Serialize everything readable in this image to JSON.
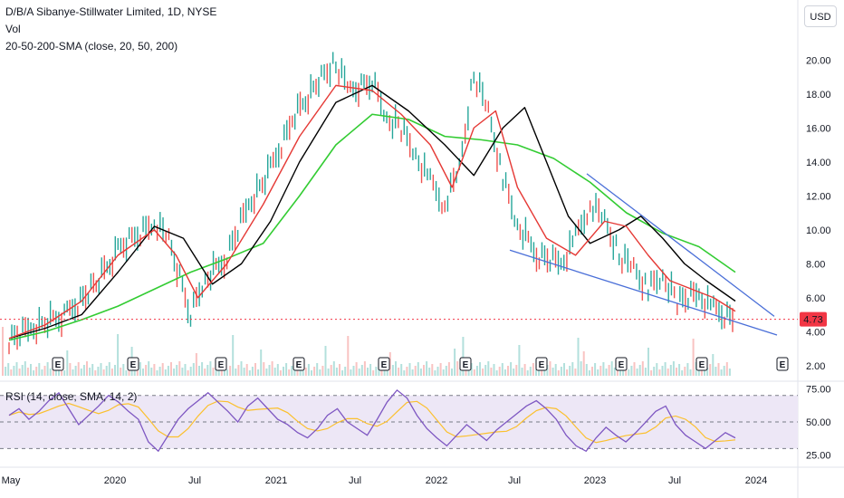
{
  "header": {
    "title": "D/B/A Sibanye-Stillwater Limited, 1D, NYSE",
    "vol_label": "Vol",
    "sma_label": "20-50-200-SMA (close, 20, 50, 200)",
    "currency": "USD"
  },
  "rsi_panel": {
    "label": "RSI (14, close, SMA, 14, 2)",
    "yticks": [
      "75.00",
      "50.00",
      "25.00"
    ],
    "upper": 70,
    "lower": 30,
    "middle": 50
  },
  "colors": {
    "up": "#26a69a",
    "down": "#ef5350",
    "sma20": "#e53935",
    "sma50": "#000000",
    "sma200": "#33cc33",
    "trendline": "#4a6fd8",
    "rsi": "#7e57c2",
    "rsi_sma": "#fbc02d",
    "rsi_band": "#ede7f6",
    "price_tag": "#f23645"
  },
  "chart_data": [
    {
      "type": "line",
      "title": "D/B/A Sibanye-Stillwater Limited, 1D, NYSE",
      "yticks": [
        "20.00",
        "18.00",
        "16.00",
        "14.00",
        "12.00",
        "10.00",
        "8.00",
        "6.00",
        "4.00",
        "2.00"
      ],
      "ylim": [
        1.4,
        21.4
      ],
      "xticks": [
        "May",
        "2020",
        "Jul",
        "2021",
        "Jul",
        "2022",
        "Jul",
        "2023",
        "Jul",
        "2024"
      ],
      "last_price": "4.73",
      "series": [
        {
          "name": "close",
          "x": [
            0,
            0.03,
            0.08,
            0.12,
            0.15,
            0.2,
            0.22,
            0.25,
            0.27,
            0.3,
            0.33,
            0.36,
            0.39,
            0.43,
            0.45,
            0.47,
            0.5,
            0.52,
            0.54,
            0.56,
            0.58,
            0.6,
            0.62,
            0.64,
            0.66,
            0.68,
            0.7,
            0.73,
            0.76,
            0.78,
            0.8,
            0.82,
            0.84,
            0.86,
            0.88,
            0.9,
            0.92,
            0.95,
            0.97,
            1
          ],
          "values": [
            3.5,
            4.2,
            5.0,
            6.8,
            8.8,
            10.5,
            9.5,
            5.0,
            7.0,
            8.5,
            11.5,
            13.5,
            16.5,
            19.0,
            19.8,
            18.2,
            18.8,
            16.5,
            16.0,
            14.5,
            12.8,
            11.5,
            13.5,
            19.2,
            17.0,
            13.0,
            10.2,
            8.5,
            8.0,
            9.5,
            11.5,
            10.5,
            8.5,
            7.8,
            6.5,
            7.2,
            5.8,
            6.2,
            5.3,
            4.73
          ]
        },
        {
          "name": "SMA 20",
          "x": [
            0,
            0.05,
            0.1,
            0.15,
            0.2,
            0.23,
            0.26,
            0.3,
            0.35,
            0.4,
            0.45,
            0.5,
            0.54,
            0.58,
            0.61,
            0.64,
            0.67,
            0.7,
            0.74,
            0.78,
            0.82,
            0.85,
            0.88,
            0.91,
            0.94,
            0.97,
            1
          ],
          "values": [
            3.6,
            4.4,
            5.8,
            8.5,
            10.0,
            8.5,
            6.0,
            8.0,
            11.5,
            15.5,
            18.5,
            18.2,
            16.8,
            15.0,
            12.5,
            16.0,
            17.0,
            12.5,
            9.5,
            8.5,
            10.5,
            10.2,
            8.5,
            7.0,
            6.5,
            6.0,
            5.2
          ]
        },
        {
          "name": "SMA 50",
          "x": [
            0,
            0.05,
            0.1,
            0.15,
            0.2,
            0.24,
            0.28,
            0.32,
            0.36,
            0.4,
            0.45,
            0.5,
            0.55,
            0.6,
            0.64,
            0.68,
            0.71,
            0.74,
            0.77,
            0.8,
            0.84,
            0.87,
            0.9,
            0.93,
            0.96,
            1
          ],
          "values": [
            3.6,
            4.2,
            5.0,
            7.5,
            10.2,
            9.5,
            6.8,
            8.0,
            10.5,
            14.0,
            17.5,
            18.5,
            17.0,
            15.0,
            13.2,
            16.0,
            17.2,
            14.0,
            10.8,
            9.2,
            10.0,
            10.8,
            9.5,
            8.0,
            7.0,
            5.8
          ]
        },
        {
          "name": "SMA 200",
          "x": [
            0,
            0.05,
            0.1,
            0.15,
            0.2,
            0.25,
            0.3,
            0.35,
            0.4,
            0.45,
            0.5,
            0.55,
            0.6,
            0.65,
            0.7,
            0.75,
            0.8,
            0.85,
            0.9,
            0.95,
            1
          ],
          "values": [
            3.5,
            4.0,
            4.7,
            5.5,
            6.5,
            7.5,
            8.3,
            9.2,
            12.0,
            15.0,
            16.8,
            16.5,
            15.5,
            15.3,
            15.0,
            14.2,
            12.8,
            11.0,
            9.8,
            9.0,
            7.5
          ]
        }
      ]
    },
    {
      "type": "line",
      "title": "RSI (14, close, SMA, 14, 2)",
      "yticks": [
        "75.00",
        "50.00",
        "25.00"
      ],
      "ylim": [
        20,
        78
      ],
      "series": [
        {
          "name": "RSI",
          "values": [
            55,
            60,
            52,
            58,
            66,
            72,
            60,
            48,
            55,
            62,
            70,
            65,
            58,
            52,
            35,
            28,
            40,
            52,
            60,
            66,
            72,
            65,
            58,
            50,
            62,
            68,
            60,
            52,
            48,
            42,
            38,
            45,
            55,
            60,
            50,
            45,
            40,
            52,
            65,
            74,
            68,
            55,
            45,
            38,
            32,
            40,
            48,
            42,
            36,
            44,
            50,
            56,
            62,
            66,
            60,
            52,
            40,
            32,
            28,
            38,
            46,
            40,
            35,
            42,
            50,
            58,
            62,
            48,
            40,
            35,
            30,
            36,
            42,
            38
          ]
        }
      ]
    }
  ]
}
